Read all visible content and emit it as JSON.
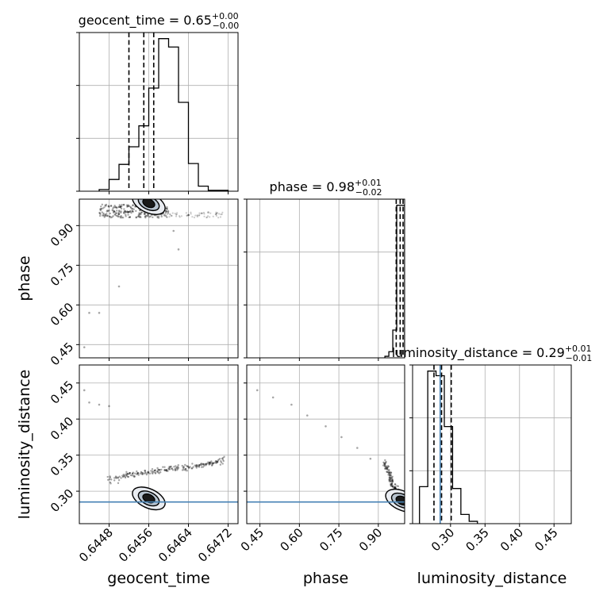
{
  "chart_data": {
    "type": "corner",
    "parameters": [
      "geocent_time",
      "phase",
      "luminosity_distance"
    ],
    "truths": {
      "geocent_time": null,
      "phase": null,
      "luminosity_distance": 0.285
    },
    "truth_color": "#4682b4",
    "panels": [
      {
        "kind": "hist",
        "param": "geocent_time",
        "title_lhs": "geocent_time = 0.65",
        "title_sup": "+0.00",
        "title_sub": "−0.00",
        "xlim": [
          0.6442,
          0.6474
        ],
        "bins_left": 0.6446,
        "bin_width": 0.0002,
        "counts": [
          0.2,
          1.4,
          3.2,
          5.3,
          7.8,
          12.3,
          18.2,
          17.2,
          10.6,
          3.3,
          0.6,
          0.1,
          0.1
        ],
        "quantiles": [
          0.6452,
          0.6455,
          0.6457
        ],
        "grid": true
      },
      {
        "kind": "hist",
        "param": "phase",
        "title_lhs": "phase = 0.98",
        "title_sup": "+0.01",
        "title_sub": "−0.02",
        "xlim": [
          0.4,
          1.0
        ],
        "bins_left": 0.925,
        "bin_width": 0.015,
        "counts": [
          0.5,
          2.0,
          9.0,
          49.5,
          49.5
        ],
        "quantiles": [
          0.968,
          0.983,
          0.994
        ],
        "grid": true
      },
      {
        "kind": "hist",
        "param": "luminosity_distance",
        "title_lhs": "luminosity_distance = 0.29",
        "title_sup": "+0.01",
        "title_sub": "−0.01",
        "xlim": [
          0.245,
          0.475
        ],
        "bins_left": 0.255,
        "bin_width": 0.012,
        "counts": [
          4.0,
          16.5,
          16.0,
          10.5,
          3.8,
          1.0,
          0.25
        ],
        "quantiles": [
          0.276,
          0.287,
          0.301
        ],
        "grid": true
      },
      {
        "kind": "scatter",
        "x": "geocent_time",
        "y": "phase",
        "xlim": [
          0.6442,
          0.6474
        ],
        "ylim": [
          0.4,
          1.0
        ],
        "points": [
          [
            0.6443,
            0.44
          ],
          [
            0.6444,
            0.57
          ],
          [
            0.6446,
            0.57
          ],
          [
            0.645,
            0.67
          ],
          [
            0.6461,
            0.88
          ],
          [
            0.6462,
            0.81
          ],
          [
            0.6458,
            0.93
          ],
          [
            0.6464,
            0.94
          ],
          [
            0.6468,
            0.95
          ]
        ],
        "dense_band": {
          "x": [
            0.6446,
            0.646
          ],
          "y": [
            0.93,
            0.98
          ]
        },
        "spread_band": {
          "x": [
            0.6458,
            0.6471
          ],
          "y": [
            0.93,
            0.95
          ]
        },
        "contour_center": [
          0.6456,
          0.985
        ],
        "grid": true
      },
      {
        "kind": "scatter",
        "x": "geocent_time",
        "y": "luminosity_distance",
        "xlim": [
          0.6442,
          0.6474
        ],
        "ylim": [
          0.255,
          0.475
        ],
        "points": [
          [
            0.6443,
            0.44
          ],
          [
            0.6444,
            0.423
          ],
          [
            0.6446,
            0.42
          ],
          [
            0.6448,
            0.418
          ]
        ],
        "trail": [
          [
            0.6448,
            0.315
          ],
          [
            0.6452,
            0.323
          ],
          [
            0.6456,
            0.327
          ],
          [
            0.646,
            0.33
          ],
          [
            0.6464,
            0.333
          ],
          [
            0.6468,
            0.337
          ],
          [
            0.6471,
            0.345
          ]
        ],
        "contour_center": [
          0.6456,
          0.29
        ],
        "grid": true
      },
      {
        "kind": "scatter",
        "x": "phase",
        "y": "luminosity_distance",
        "xlim": [
          0.4,
          1.0
        ],
        "ylim": [
          0.255,
          0.475
        ],
        "points": [
          [
            0.44,
            0.44
          ],
          [
            0.5,
            0.43
          ],
          [
            0.57,
            0.42
          ],
          [
            0.63,
            0.405
          ],
          [
            0.7,
            0.39
          ],
          [
            0.76,
            0.375
          ],
          [
            0.82,
            0.36
          ],
          [
            0.87,
            0.345
          ]
        ],
        "trail": [
          [
            0.925,
            0.34
          ],
          [
            0.94,
            0.325
          ],
          [
            0.955,
            0.31
          ],
          [
            0.97,
            0.3
          ]
        ],
        "contour_center": [
          0.99,
          0.287
        ],
        "grid": true
      }
    ],
    "axes": {
      "geocent_time": {
        "label": "geocent_time",
        "ticks": [
          0.6448,
          0.6456,
          0.6464,
          0.6472
        ],
        "tick_labels": [
          "0.6448",
          "0.6456",
          "0.6464",
          "0.6472"
        ]
      },
      "phase": {
        "label": "phase",
        "ticks": [
          0.45,
          0.6,
          0.75,
          0.9
        ],
        "tick_labels": [
          "0.45",
          "0.60",
          "0.75",
          "0.90"
        ]
      },
      "luminosity_distance": {
        "label": "luminosity_distance",
        "ticks": [
          0.3,
          0.35,
          0.4,
          0.45
        ],
        "tick_labels": [
          "0.30",
          "0.35",
          "0.40",
          "0.45"
        ]
      }
    }
  }
}
